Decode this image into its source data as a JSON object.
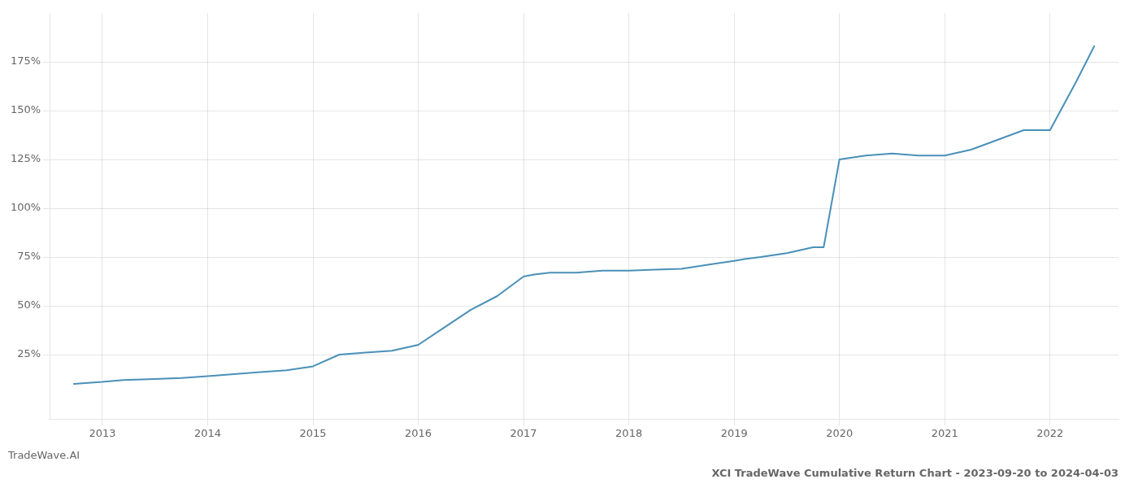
{
  "chart_data": {
    "type": "line",
    "title": "XCI TradeWave Cumulative Return Chart - 2023-09-20 to 2024-04-03",
    "subtitle": "TradeWave.AI",
    "x": [
      2012.73,
      2013.0,
      2013.2,
      2013.5,
      2013.75,
      2014.0,
      2014.25,
      2014.5,
      2014.75,
      2015.0,
      2015.25,
      2015.5,
      2015.75,
      2016.0,
      2016.25,
      2016.5,
      2016.75,
      2017.0,
      2017.1,
      2017.25,
      2017.5,
      2017.75,
      2018.0,
      2018.25,
      2018.5,
      2018.75,
      2019.0,
      2019.1,
      2019.25,
      2019.5,
      2019.75,
      2019.85,
      2020.0,
      2020.25,
      2020.5,
      2020.75,
      2021.0,
      2021.25,
      2021.5,
      2021.75,
      2022.0,
      2022.25,
      2022.42
    ],
    "values": [
      10,
      11,
      12,
      12.5,
      13,
      14,
      15,
      16,
      17,
      19,
      25,
      26,
      27,
      30,
      39,
      48,
      55,
      65,
      66,
      67,
      67,
      68,
      68,
      68.5,
      69,
      71,
      73,
      74,
      75,
      77,
      80,
      80,
      125,
      127,
      128,
      127,
      127,
      130,
      135,
      140,
      140,
      165,
      183
    ],
    "color": "#4a90b8",
    "xlim": [
      2012.5,
      2022.65
    ],
    "xticks": [
      2013,
      2014,
      2015,
      2016,
      2017,
      2018,
      2019,
      2020,
      2021,
      2022
    ],
    "ylim": [
      -8,
      200
    ],
    "yticks": [
      {
        "value": 25,
        "label": "25%"
      },
      {
        "value": 50,
        "label": "50%"
      },
      {
        "value": 75,
        "label": "75%"
      },
      {
        "value": 100,
        "label": "100%"
      },
      {
        "value": 125,
        "label": "125%"
      },
      {
        "value": 150,
        "label": "150%"
      },
      {
        "value": 175,
        "label": "175%"
      }
    ],
    "grid": true
  }
}
